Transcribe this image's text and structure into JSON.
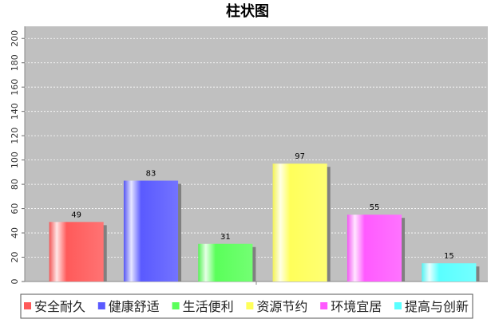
{
  "chart_data": {
    "type": "bar",
    "title": "柱状图",
    "xlabel": "",
    "ylabel": "",
    "categories": [
      "安全耐久",
      "健康舒适",
      "生活便利",
      "资源节约",
      "环境宜居",
      "提高与创新"
    ],
    "values": [
      49,
      83,
      31,
      97,
      55,
      15
    ],
    "colors": [
      "#ff5a5a",
      "#5a5aff",
      "#5aff5a",
      "#ffff5a",
      "#ff5aff",
      "#5affff"
    ],
    "ylim": [
      0,
      210
    ],
    "yticks": [
      0,
      20,
      40,
      60,
      80,
      100,
      120,
      140,
      160,
      180,
      200
    ],
    "grid": true,
    "plot_background": "#c0c0c0",
    "legend_position": "bottom"
  }
}
